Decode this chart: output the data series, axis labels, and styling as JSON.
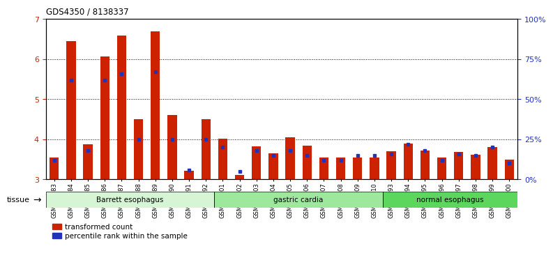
{
  "title": "GDS4350 / 8138337",
  "samples": [
    "GSM851983",
    "GSM851984",
    "GSM851985",
    "GSM851986",
    "GSM851987",
    "GSM851988",
    "GSM851989",
    "GSM851990",
    "GSM851991",
    "GSM851992",
    "GSM852001",
    "GSM852002",
    "GSM852003",
    "GSM852004",
    "GSM852005",
    "GSM852006",
    "GSM852007",
    "GSM852008",
    "GSM852009",
    "GSM852010",
    "GSM851993",
    "GSM851994",
    "GSM851995",
    "GSM851996",
    "GSM851997",
    "GSM851998",
    "GSM851999",
    "GSM852000"
  ],
  "red_values": [
    3.55,
    6.45,
    3.87,
    6.07,
    6.58,
    4.5,
    6.7,
    4.6,
    3.22,
    4.5,
    4.02,
    3.12,
    3.82,
    3.65,
    4.05,
    3.85,
    3.55,
    3.55,
    3.55,
    3.55,
    3.7,
    3.9,
    3.72,
    3.55,
    3.68,
    3.62,
    3.8,
    3.5
  ],
  "blue_values_pct": [
    12,
    62,
    18,
    62,
    66,
    25,
    67,
    25,
    6,
    25,
    20,
    5,
    18,
    15,
    18,
    15,
    12,
    12,
    15,
    15,
    16,
    22,
    18,
    12,
    16,
    15,
    20,
    10
  ],
  "groups": [
    {
      "label": "Barrett esophagus",
      "start": 0,
      "end": 10,
      "color": "#d5f5d5"
    },
    {
      "label": "gastric cardia",
      "start": 10,
      "end": 20,
      "color": "#9de89d"
    },
    {
      "label": "normal esophagus",
      "start": 20,
      "end": 28,
      "color": "#5cd65c"
    }
  ],
  "ylim_left": [
    3,
    7
  ],
  "ylim_right": [
    0,
    100
  ],
  "yticks_left": [
    3,
    4,
    5,
    6,
    7
  ],
  "yticks_right": [
    0,
    25,
    50,
    75,
    100
  ],
  "ytick_labels_right": [
    "0%",
    "25%",
    "50%",
    "75%",
    "100%"
  ],
  "red_color": "#cc2200",
  "blue_color": "#2233bb",
  "bar_width": 0.55,
  "bg_color": "#ffffff",
  "legend_red": "transformed count",
  "legend_blue": "percentile rank within the sample",
  "tissue_label": "tissue",
  "ymin": 3
}
